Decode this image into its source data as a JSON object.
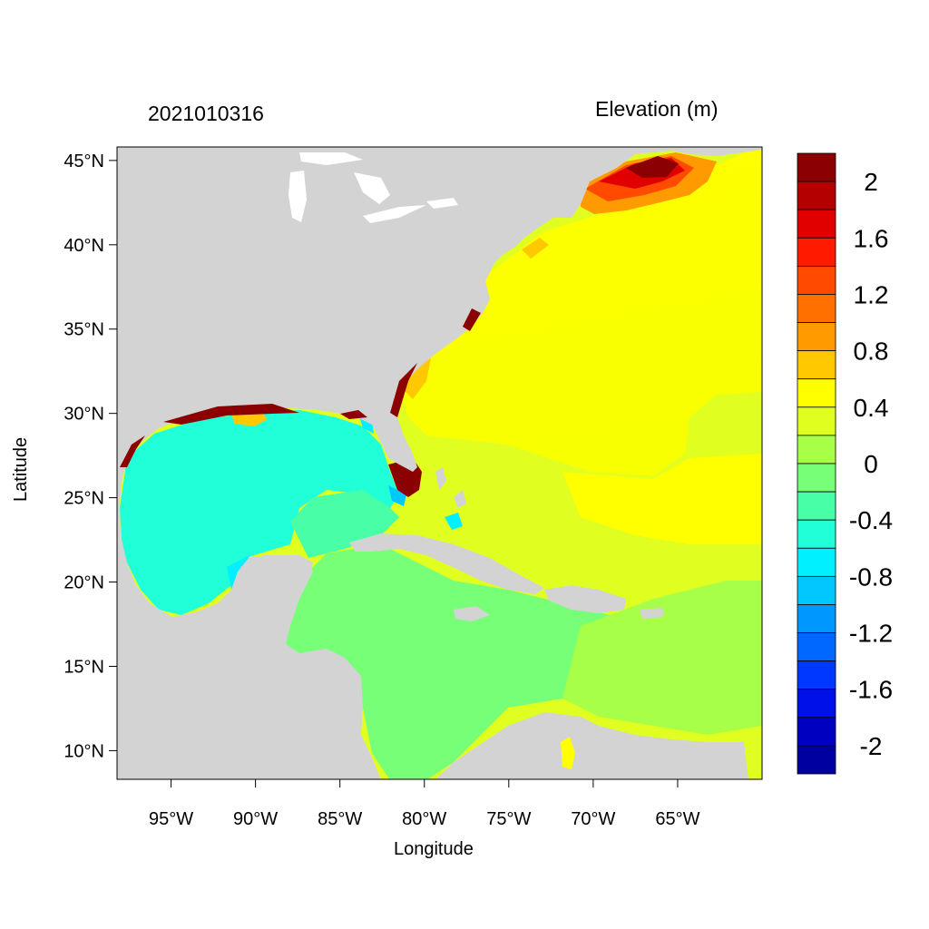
{
  "title_left": "2021010316",
  "title_right": "Elevation (m)",
  "xlabel": "Longitude",
  "ylabel": "Latitude",
  "map": {
    "lon_range": [
      -98.2,
      -60.0
    ],
    "lat_range": [
      8.3,
      45.8
    ],
    "land_color": "#d3d3d3",
    "x_ticks": [
      {
        "lon": -95,
        "label": "95°W"
      },
      {
        "lon": -90,
        "label": "90°W"
      },
      {
        "lon": -85,
        "label": "85°W"
      },
      {
        "lon": -80,
        "label": "80°W"
      },
      {
        "lon": -75,
        "label": "75°W"
      },
      {
        "lon": -70,
        "label": "70°W"
      },
      {
        "lon": -65,
        "label": "65°W"
      }
    ],
    "y_ticks": [
      {
        "lat": 45,
        "label": "45°N"
      },
      {
        "lat": 40,
        "label": "40°N"
      },
      {
        "lat": 35,
        "label": "35°N"
      },
      {
        "lat": 30,
        "label": "30°N"
      },
      {
        "lat": 25,
        "label": "25°N"
      },
      {
        "lat": 20,
        "label": "20°N"
      },
      {
        "lat": 15,
        "label": "15°N"
      },
      {
        "lat": 10,
        "label": "10°N"
      }
    ]
  },
  "colorbar": {
    "colors": [
      "#8b0000",
      "#b50000",
      "#e00000",
      "#ff1a00",
      "#ff4a00",
      "#ff7000",
      "#ff9a00",
      "#ffc800",
      "#ffff00",
      "#e0ff20",
      "#a8ff48",
      "#78ff78",
      "#48ffa8",
      "#20ffd8",
      "#00f0ff",
      "#00c8ff",
      "#0098ff",
      "#0068ff",
      "#0038ff",
      "#0010e8",
      "#0000c0",
      "#0000a0"
    ],
    "labels": [
      "2",
      "1.6",
      "1.2",
      "0.8",
      "0.4",
      "0",
      "-0.4",
      "-0.8",
      "-1.2",
      "-1.6",
      "-2"
    ]
  }
}
